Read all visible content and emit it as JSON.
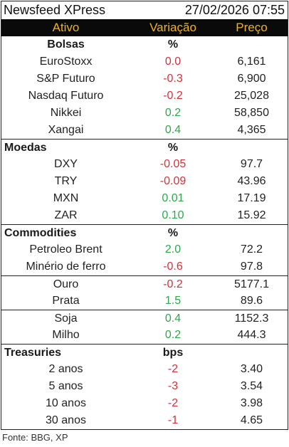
{
  "title": "Newsfeed XPress",
  "datetime": "27/02/2026 07:55",
  "headers": {
    "asset": "Ativo",
    "change": "Variação",
    "price": "Preço"
  },
  "sections": {
    "bolsas": {
      "title": "Bolsas",
      "unit": "%",
      "rows": [
        {
          "name": "EuroStoxx",
          "change": "0.0",
          "price": "6,161",
          "tone": "neg"
        },
        {
          "name": "S&P Futuro",
          "change": "-0.3",
          "price": "6,900",
          "tone": "neg"
        },
        {
          "name": "Nasdaq Futuro",
          "change": "-0.2",
          "price": "25,028",
          "tone": "neg"
        },
        {
          "name": "Nikkei",
          "change": "0.2",
          "price": "58,850",
          "tone": "pos"
        },
        {
          "name": "Xangai",
          "change": "0.4",
          "price": "4,365",
          "tone": "pos"
        }
      ]
    },
    "moedas": {
      "title": "Moedas",
      "unit": "%",
      "rows": [
        {
          "name": "DXY",
          "change": "-0.05",
          "price": "97.7",
          "tone": "neg"
        },
        {
          "name": "TRY",
          "change": "-0.09",
          "price": "43.96",
          "tone": "neg"
        },
        {
          "name": "MXN",
          "change": "0.01",
          "price": "17.19",
          "tone": "pos"
        },
        {
          "name": "ZAR",
          "change": "0.10",
          "price": "15.92",
          "tone": "pos"
        }
      ]
    },
    "commodities": {
      "title": "Commodities",
      "unit": "%",
      "rows": [
        {
          "name": "Petroleo Brent",
          "change": "2.0",
          "price": "72.2",
          "tone": "pos"
        },
        {
          "name": "Minério de ferro",
          "change": "-0.6",
          "price": "97.8",
          "tone": "neg"
        },
        {
          "name": "Ouro",
          "change": "-0.2",
          "price": "5177.1",
          "tone": "neg"
        },
        {
          "name": "Prata",
          "change": "1.5",
          "price": "89.6",
          "tone": "pos"
        },
        {
          "name": "Soja",
          "change": "0.4",
          "price": "1152.3",
          "tone": "pos"
        },
        {
          "name": "Milho",
          "change": "0.2",
          "price": "444.3",
          "tone": "pos"
        }
      ]
    },
    "treasuries": {
      "title": "Treasuries",
      "unit": "bps",
      "rows": [
        {
          "name": "2 anos",
          "change": "-2",
          "price": "3.40",
          "tone": "neg"
        },
        {
          "name": "5 anos",
          "change": "-3",
          "price": "3.54",
          "tone": "neg"
        },
        {
          "name": "10 anos",
          "change": "-2",
          "price": "3.98",
          "tone": "neg"
        },
        {
          "name": "30 anos",
          "change": "-1",
          "price": "4.65",
          "tone": "neg"
        }
      ]
    }
  },
  "colors": {
    "header_bg": "#0a0a0a",
    "header_text": "#f2b21c",
    "negative": "#d3313a",
    "positive": "#2ca84a"
  },
  "footer": "Fonte: BBG, XP"
}
